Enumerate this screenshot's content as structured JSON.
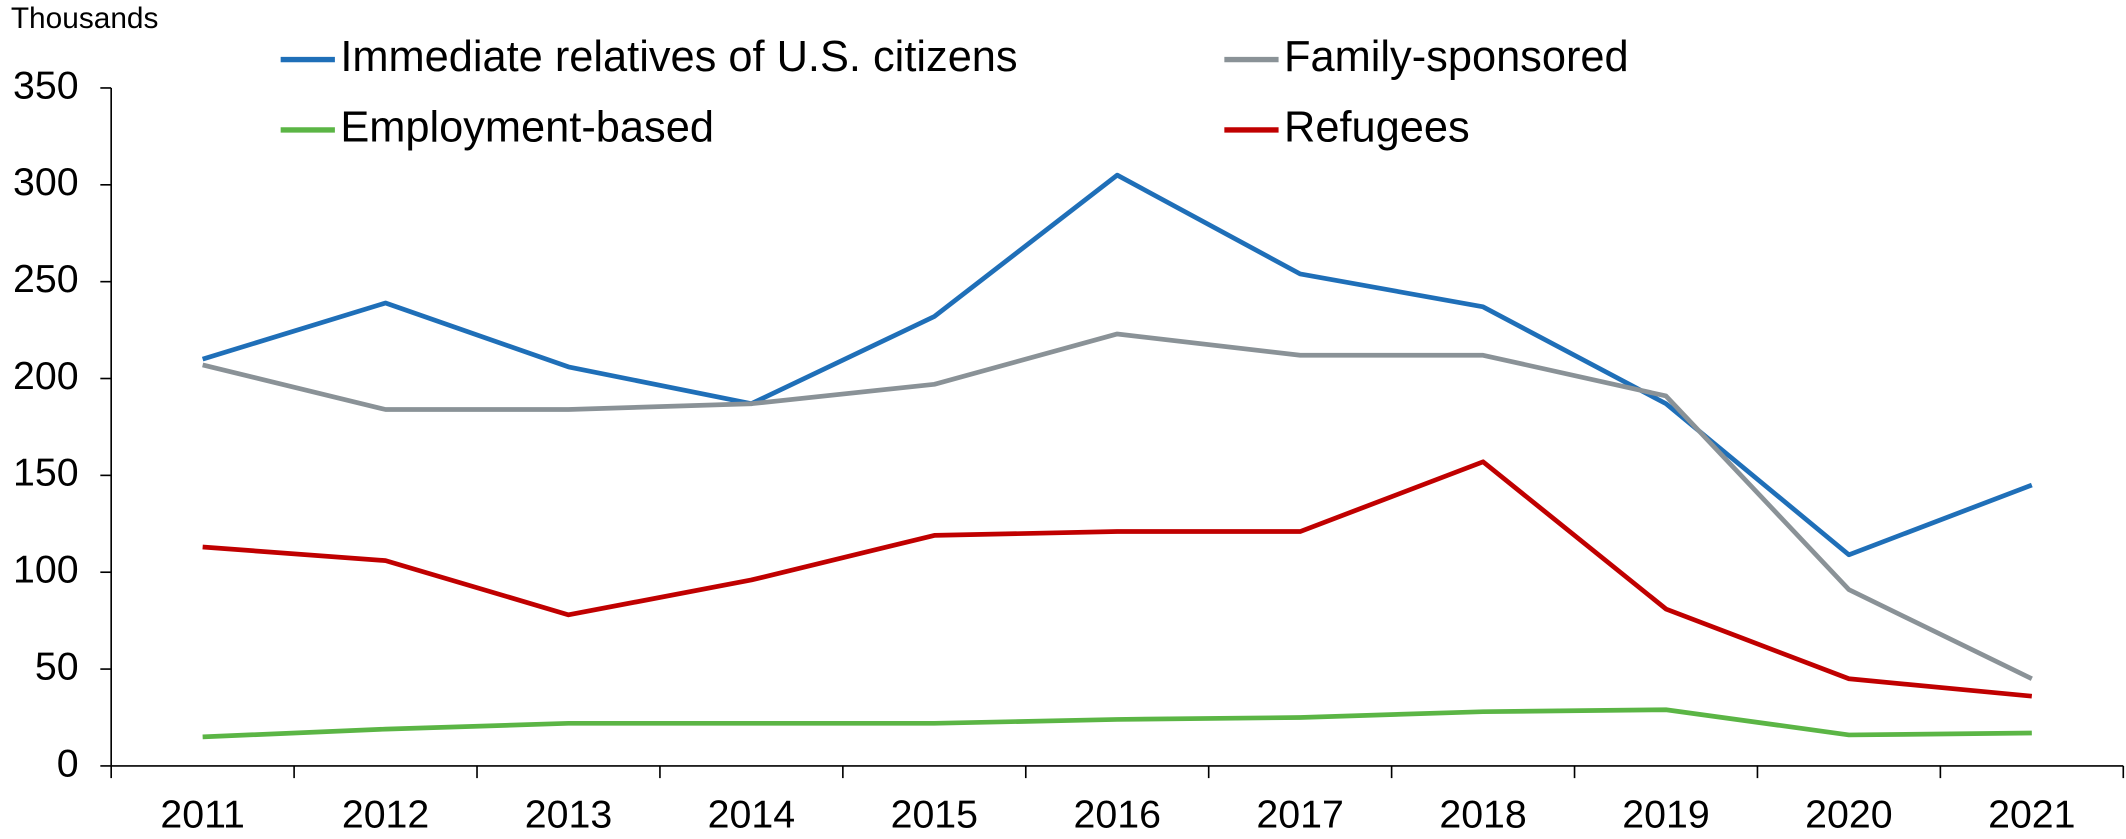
{
  "chart_data": {
    "type": "line",
    "y_label": "Thousands",
    "categories": [
      "2011",
      "2012",
      "2013",
      "2014",
      "2015",
      "2016",
      "2017",
      "2018",
      "2019",
      "2020",
      "2021"
    ],
    "series": [
      {
        "name": "Immediate relatives of U.S. citizens",
        "color": "#1f6fb8",
        "values": [
          210,
          239,
          206,
          187,
          232,
          305,
          254,
          237,
          187,
          109,
          145
        ]
      },
      {
        "name": "Family-sponsored",
        "color": "#8a9297",
        "values": [
          207,
          184,
          184,
          187,
          197,
          223,
          212,
          212,
          191,
          91,
          45
        ]
      },
      {
        "name": "Employment-based",
        "color": "#5bb545",
        "values": [
          15,
          19,
          22,
          22,
          22,
          24,
          25,
          28,
          29,
          16,
          17
        ]
      },
      {
        "name": "Refugees",
        "color": "#c00000",
        "values": [
          113,
          106,
          78,
          96,
          119,
          121,
          121,
          157,
          81,
          45,
          36
        ]
      }
    ],
    "ylim": [
      0,
      350
    ],
    "yticks": [
      0,
      50,
      100,
      150,
      200,
      250,
      300,
      350
    ],
    "grid": false
  }
}
